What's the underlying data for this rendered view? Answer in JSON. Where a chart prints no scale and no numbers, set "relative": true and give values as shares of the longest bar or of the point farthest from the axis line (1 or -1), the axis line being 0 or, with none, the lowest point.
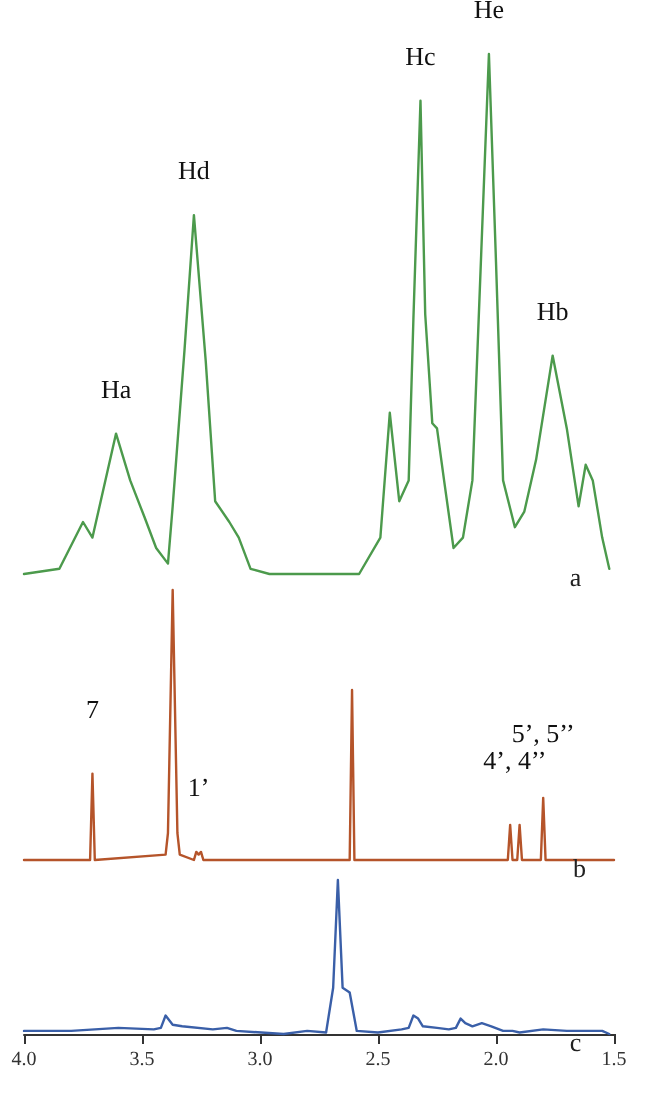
{
  "chart_data": [
    {
      "type": "line",
      "relative": true,
      "xlim": [
        4.0,
        1.5
      ],
      "tick_labels": false,
      "x": [
        4.0,
        3.85,
        3.75,
        3.71,
        3.61,
        3.55,
        3.49,
        3.44,
        3.39,
        3.37,
        3.32,
        3.28,
        3.23,
        3.19,
        3.13,
        3.09,
        3.04,
        2.96,
        2.7,
        2.58,
        2.49,
        2.45,
        2.41,
        2.37,
        2.35,
        2.32,
        2.3,
        2.27,
        2.25,
        2.22,
        2.18,
        2.14,
        2.1,
        2.07,
        2.03,
        2.0,
        1.97,
        1.92,
        1.88,
        1.83,
        1.76,
        1.7,
        1.65,
        1.62,
        1.59,
        1.55,
        1.52
      ],
      "series": [
        {
          "name": "a",
          "color": "#4c9a4c",
          "values": [
            0,
            0.01,
            0.1,
            0.07,
            0.27,
            0.18,
            0.11,
            0.05,
            0.02,
            0.13,
            0.43,
            0.69,
            0.41,
            0.14,
            0.1,
            0.07,
            0.01,
            0,
            0,
            0,
            0.07,
            0.31,
            0.14,
            0.18,
            0.49,
            0.91,
            0.5,
            0.29,
            0.28,
            0.18,
            0.05,
            0.07,
            0.18,
            0.53,
            1.0,
            0.6,
            0.18,
            0.09,
            0.12,
            0.22,
            0.42,
            0.28,
            0.13,
            0.21,
            0.18,
            0.07,
            0.01
          ]
        }
      ],
      "annotations": [
        {
          "text": "Ha",
          "x": 3.61,
          "y": 0.27
        },
        {
          "text": "Hd",
          "x": 3.28,
          "y": 0.69
        },
        {
          "text": "Hc",
          "x": 2.32,
          "y": 0.91
        },
        {
          "text": "He",
          "x": 2.03,
          "y": 1.0
        },
        {
          "text": "Hb",
          "x": 1.76,
          "y": 0.42
        }
      ]
    },
    {
      "type": "line",
      "relative": true,
      "xlim": [
        4.0,
        1.5
      ],
      "tick_labels": false,
      "x": [
        4.0,
        3.72,
        3.71,
        3.7,
        3.4,
        3.39,
        3.37,
        3.35,
        3.34,
        3.28,
        3.27,
        3.26,
        3.25,
        3.24,
        2.62,
        2.61,
        2.6,
        1.95,
        1.94,
        1.93,
        1.91,
        1.9,
        1.89,
        1.81,
        1.8,
        1.79,
        1.5
      ],
      "series": [
        {
          "name": "b",
          "color": "#b5542a",
          "values": [
            0,
            0,
            0.32,
            0,
            0.02,
            0.1,
            1.0,
            0.1,
            0.02,
            0,
            0.03,
            0.02,
            0.03,
            0,
            0,
            0.63,
            0,
            0,
            0.13,
            0,
            0,
            0.13,
            0,
            0,
            0.23,
            0,
            0
          ]
        }
      ],
      "annotations": [
        {
          "text": "7",
          "x": 3.71,
          "y": 0.32
        },
        {
          "text": "1’",
          "x": 3.26,
          "y": 0.03
        },
        {
          "text": "4’, 4’’",
          "x": 1.92,
          "y": 0.13
        },
        {
          "text": "5’, 5’’",
          "x": 1.8,
          "y": 0.23
        }
      ]
    },
    {
      "type": "line",
      "relative": true,
      "xlim": [
        4.0,
        1.5
      ],
      "tick_labels": "x",
      "xticks": [
        {
          "value": 4,
          "label": "4.0"
        },
        3.5,
        {
          "value": 3,
          "label": "3.0"
        },
        2.5,
        {
          "value": 2,
          "label": "2.0"
        },
        1.5
      ],
      "x": [
        4.0,
        3.8,
        3.6,
        3.45,
        3.42,
        3.4,
        3.37,
        3.33,
        3.2,
        3.14,
        3.1,
        2.9,
        2.8,
        2.72,
        2.69,
        2.67,
        2.65,
        2.62,
        2.59,
        2.5,
        2.4,
        2.37,
        2.35,
        2.33,
        2.31,
        2.25,
        2.2,
        2.17,
        2.15,
        2.13,
        2.1,
        2.06,
        2.02,
        1.97,
        1.93,
        1.9,
        1.8,
        1.7,
        1.6,
        1.55,
        1.52
      ],
      "series": [
        {
          "name": "c",
          "color": "#3a5fa8",
          "values": [
            0.02,
            0.02,
            0.04,
            0.03,
            0.04,
            0.12,
            0.06,
            0.05,
            0.03,
            0.04,
            0.02,
            0,
            0.02,
            0.01,
            0.3,
            1.0,
            0.3,
            0.27,
            0.02,
            0.01,
            0.03,
            0.04,
            0.12,
            0.1,
            0.05,
            0.04,
            0.03,
            0.04,
            0.1,
            0.07,
            0.05,
            0.07,
            0.05,
            0.02,
            0.02,
            0.01,
            0.03,
            0.02,
            0.02,
            0.02,
            0
          ]
        }
      ]
    }
  ]
}
